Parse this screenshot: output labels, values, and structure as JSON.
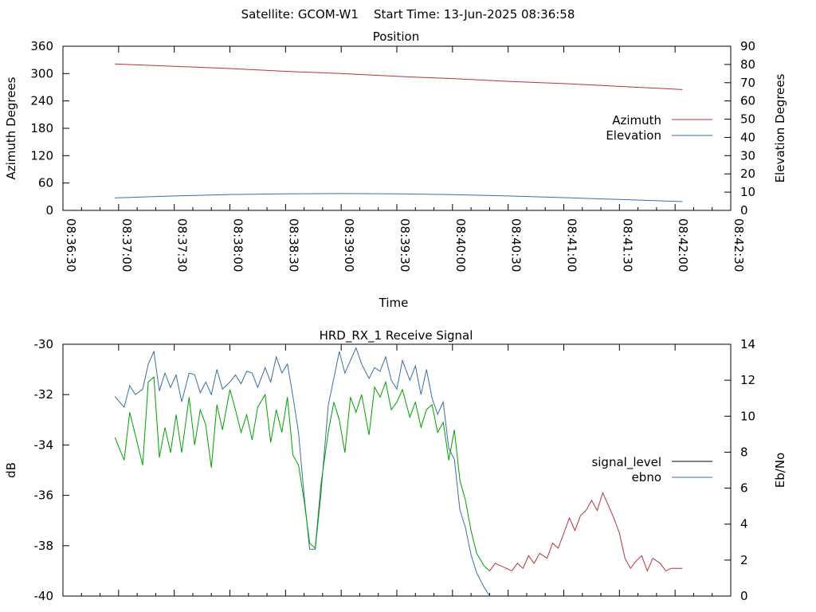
{
  "header": {
    "title": "Satellite: GCOM-W1    Start Time: 13-Jun-2025 08:36:58"
  },
  "chart_data": [
    {
      "type": "line",
      "title": "Position",
      "xlabel": "Time",
      "ylabel": "Azimuth Degrees",
      "y2label": "Elevation Degrees",
      "x_ticks": [
        "08:36:30",
        "08:37:00",
        "08:37:30",
        "08:38:00",
        "08:38:30",
        "08:39:00",
        "08:39:30",
        "08:40:00",
        "08:40:30",
        "08:41:00",
        "08:41:30",
        "08:42:00",
        "08:42:30"
      ],
      "ylim": [
        0,
        360
      ],
      "y_ticks": [
        0,
        60,
        120,
        180,
        240,
        300,
        360
      ],
      "y2lim": [
        0,
        90
      ],
      "y2_ticks": [
        0,
        10,
        20,
        30,
        40,
        50,
        60,
        70,
        80,
        90
      ],
      "legend_position": "right",
      "series": [
        {
          "name": "Azimuth",
          "axis": "y",
          "color": "#b3343c",
          "x": [
            "08:36:58",
            "08:37:30",
            "08:38:00",
            "08:38:30",
            "08:39:00",
            "08:39:30",
            "08:40:00",
            "08:40:30",
            "08:41:00",
            "08:41:30",
            "08:42:04"
          ],
          "values": [
            321,
            316,
            311,
            305,
            300,
            294,
            289,
            283,
            278,
            272,
            265
          ]
        },
        {
          "name": "Elevation",
          "axis": "y2",
          "color": "#3a6ea5",
          "x": [
            "08:36:58",
            "08:37:30",
            "08:38:00",
            "08:38:30",
            "08:39:00",
            "08:39:30",
            "08:40:00",
            "08:40:30",
            "08:41:00",
            "08:41:30",
            "08:42:04"
          ],
          "values": [
            6.8,
            7.9,
            8.7,
            9.1,
            9.2,
            9.1,
            8.6,
            7.9,
            7.0,
            6.0,
            4.8
          ]
        }
      ]
    },
    {
      "type": "line",
      "title": "HRD_RX_1 Receive Signal",
      "ylabel": "dB",
      "y2label": "Eb/No",
      "ylim": [
        -40,
        -30
      ],
      "y_ticks": [
        -40,
        -38,
        -36,
        -34,
        -32,
        -30
      ],
      "y2lim": [
        0,
        14
      ],
      "y2_ticks": [
        0,
        2,
        4,
        6,
        8,
        10,
        12,
        14
      ],
      "xlim": [
        "08:36:30",
        "08:42:30"
      ],
      "legend_position": "right",
      "series": [
        {
          "name": "signal_level",
          "axis": "y",
          "color": "#000000",
          "segment_colors": {
            "strong": "#00a000",
            "weak": "#b3343c"
          },
          "x": [
            "08:36:58",
            "08:37:03",
            "08:37:06",
            "08:37:09",
            "08:37:13",
            "08:37:16",
            "08:37:19",
            "08:37:22",
            "08:37:25",
            "08:37:28",
            "08:37:31",
            "08:37:34",
            "08:37:38",
            "08:37:41",
            "08:37:44",
            "08:37:47",
            "08:37:50",
            "08:37:53",
            "08:37:56",
            "08:38:00",
            "08:38:03",
            "08:38:06",
            "08:38:09",
            "08:38:12",
            "08:38:15",
            "08:38:19",
            "08:38:22",
            "08:38:25",
            "08:38:28",
            "08:38:31",
            "08:38:34",
            "08:38:37",
            "08:38:40",
            "08:38:43",
            "08:38:46",
            "08:38:49",
            "08:38:53",
            "08:38:56",
            "08:38:59",
            "08:39:02",
            "08:39:05",
            "08:39:08",
            "08:39:11",
            "08:39:15",
            "08:39:18",
            "08:39:21",
            "08:39:24",
            "08:39:27",
            "08:39:30",
            "08:39:33",
            "08:39:37",
            "08:39:40",
            "08:39:43",
            "08:39:46",
            "08:39:49",
            "08:39:52",
            "08:39:55",
            "08:39:58",
            "08:40:01",
            "08:40:04",
            "08:40:07",
            "08:40:10",
            "08:40:13",
            "08:40:17",
            "08:40:20",
            "08:40:23",
            "08:40:26",
            "08:40:29",
            "08:40:32",
            "08:40:35",
            "08:40:38",
            "08:40:41",
            "08:40:44",
            "08:40:47",
            "08:40:51",
            "08:40:54",
            "08:40:57",
            "08:41:00",
            "08:41:03",
            "08:41:06",
            "08:41:09",
            "08:41:12",
            "08:41:15",
            "08:41:18",
            "08:41:21",
            "08:41:24",
            "08:41:27",
            "08:41:30",
            "08:41:33",
            "08:41:36",
            "08:41:39",
            "08:41:42",
            "08:41:45",
            "08:41:48",
            "08:41:52",
            "08:41:55",
            "08:41:58",
            "08:42:01",
            "08:42:04"
          ],
          "values": [
            -33.7,
            -34.6,
            -32.7,
            -33.6,
            -34.8,
            -31.5,
            -31.3,
            -34.5,
            -33.3,
            -34.3,
            -32.8,
            -34.3,
            -32.1,
            -34.0,
            -32.6,
            -33.2,
            -34.9,
            -32.4,
            -33.4,
            -31.8,
            -32.6,
            -33.5,
            -32.8,
            -33.8,
            -32.5,
            -32.0,
            -33.9,
            -32.6,
            -33.5,
            -32.1,
            -34.4,
            -34.8,
            -36.2,
            -37.9,
            -38.1,
            -35.6,
            -33.5,
            -32.3,
            -33.0,
            -34.3,
            -32.1,
            -32.7,
            -32.0,
            -33.6,
            -31.7,
            -32.1,
            -31.5,
            -32.6,
            -32.3,
            -31.8,
            -32.9,
            -32.3,
            -33.3,
            -32.6,
            -32.4,
            -33.5,
            -33.1,
            -34.6,
            -33.4,
            -35.4,
            -36.2,
            -37.4,
            -38.3,
            -38.8,
            -39.0,
            -38.7,
            -38.8,
            -38.9,
            -39.0,
            -38.7,
            -38.9,
            -38.4,
            -38.7,
            -38.3,
            -38.5,
            -37.9,
            -38.1,
            -37.5,
            -36.9,
            -37.4,
            -36.8,
            -36.6,
            -36.2,
            -36.6,
            -35.9,
            -36.4,
            -36.9,
            -37.5,
            -38.5,
            -38.9,
            -38.6,
            -38.4,
            -39.0,
            -38.5,
            -38.7,
            -39.0,
            -38.9,
            -38.9,
            -38.9
          ]
        },
        {
          "name": "ebno",
          "axis": "y2",
          "color": "#3a6ea5",
          "x": [
            "08:36:58",
            "08:37:03",
            "08:37:06",
            "08:37:09",
            "08:37:13",
            "08:37:16",
            "08:37:19",
            "08:37:22",
            "08:37:25",
            "08:37:28",
            "08:37:31",
            "08:37:34",
            "08:37:38",
            "08:37:41",
            "08:37:44",
            "08:37:47",
            "08:37:50",
            "08:37:53",
            "08:37:56",
            "08:38:00",
            "08:38:03",
            "08:38:06",
            "08:38:09",
            "08:38:12",
            "08:38:15",
            "08:38:19",
            "08:38:22",
            "08:38:25",
            "08:38:28",
            "08:38:31",
            "08:38:34",
            "08:38:37",
            "08:38:40",
            "08:38:43",
            "08:38:46",
            "08:38:49",
            "08:38:53",
            "08:38:56",
            "08:38:59",
            "08:39:02",
            "08:39:05",
            "08:39:08",
            "08:39:11",
            "08:39:15",
            "08:39:18",
            "08:39:21",
            "08:39:24",
            "08:39:27",
            "08:39:30",
            "08:39:33",
            "08:39:37",
            "08:39:40",
            "08:39:43",
            "08:39:46",
            "08:39:49",
            "08:39:52",
            "08:39:55",
            "08:39:58",
            "08:40:01",
            "08:40:04",
            "08:40:07",
            "08:40:10",
            "08:40:13",
            "08:40:17",
            "08:40:20"
          ],
          "values": [
            11.1,
            10.5,
            11.7,
            11.2,
            11.5,
            12.9,
            13.6,
            11.4,
            12.4,
            11.6,
            12.3,
            10.8,
            12.4,
            12.3,
            11.3,
            11.9,
            11.2,
            12.6,
            11.5,
            11.9,
            12.3,
            11.8,
            12.5,
            12.4,
            11.6,
            12.7,
            11.9,
            13.3,
            12.4,
            12.9,
            11.1,
            9.1,
            5.6,
            2.6,
            2.6,
            5.6,
            10.6,
            12.1,
            13.6,
            12.4,
            13.1,
            13.8,
            12.9,
            12.1,
            12.7,
            12.5,
            13.3,
            12.0,
            11.5,
            13.1,
            12.0,
            12.8,
            11.2,
            12.6,
            11.0,
            10.1,
            10.8,
            8.2,
            7.6,
            4.8,
            3.8,
            2.3,
            1.3,
            0.5,
            0.0
          ]
        }
      ]
    }
  ]
}
